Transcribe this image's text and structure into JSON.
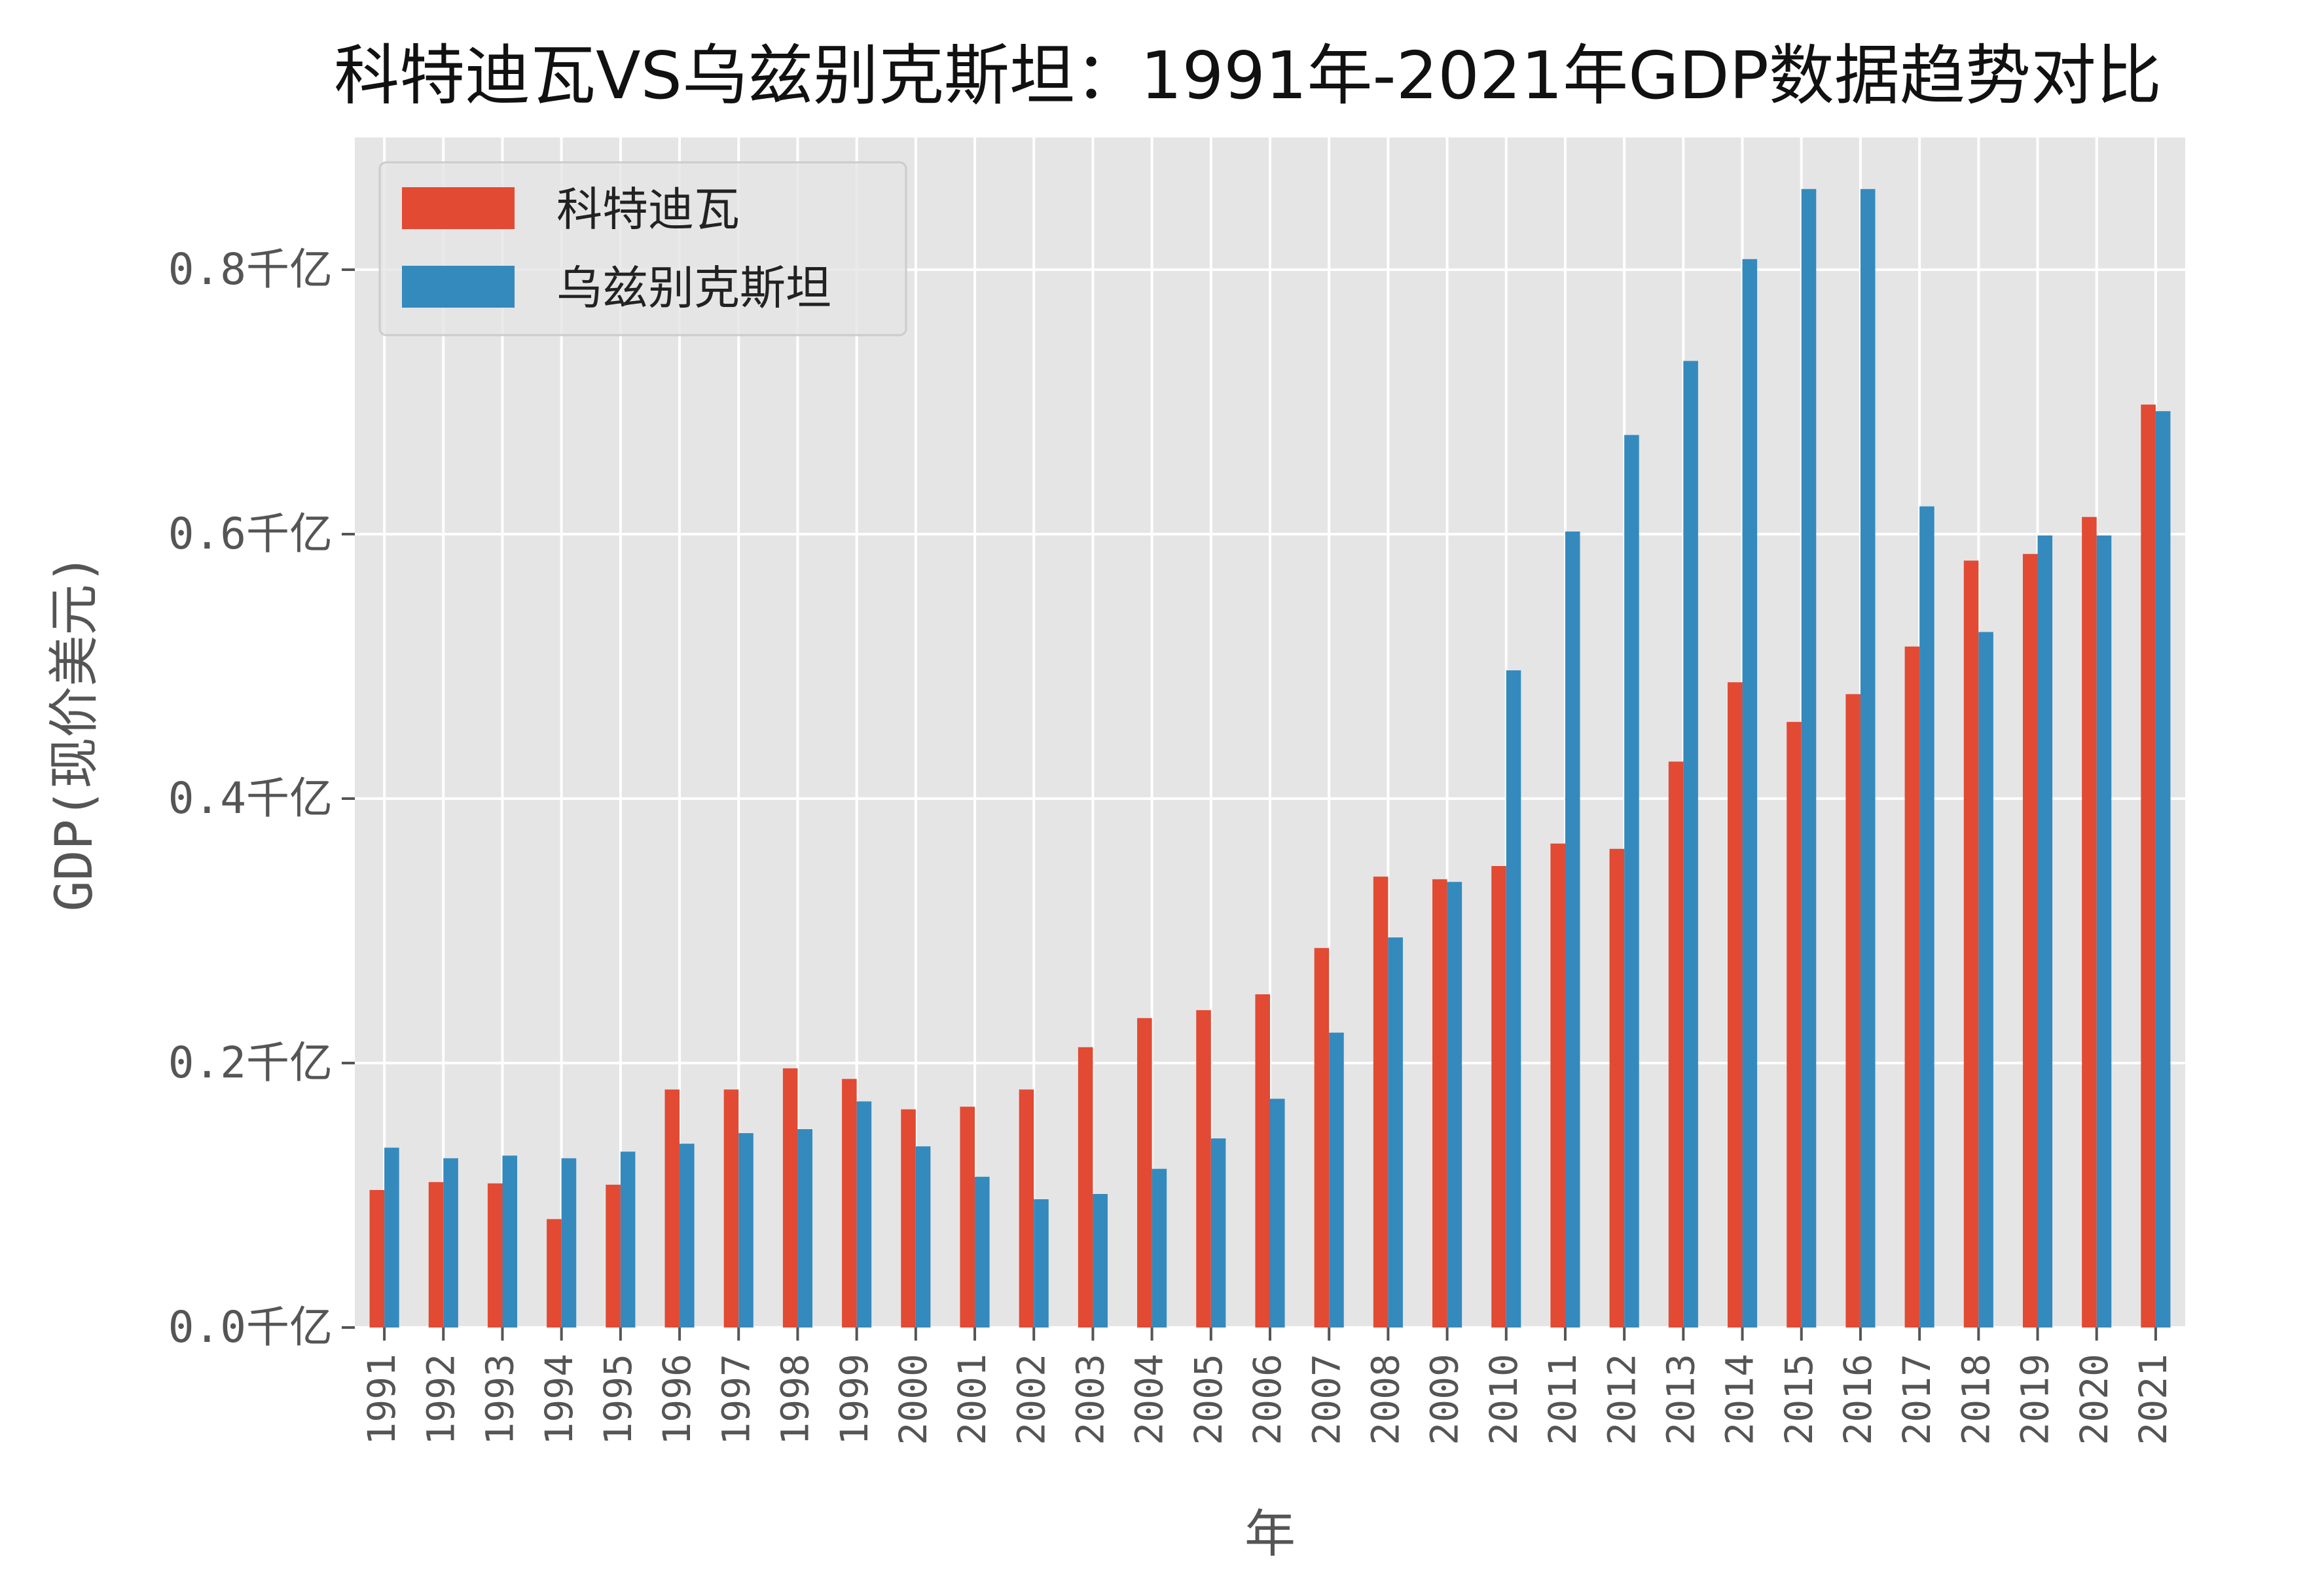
{
  "chart_data": {
    "type": "bar",
    "title": "科特迪瓦VS乌兹别克斯坦：1991年-2021年GDP数据趋势对比",
    "xlabel": "年",
    "ylabel": "GDP(现价美元)",
    "categories": [
      "1991",
      "1992",
      "1993",
      "1994",
      "1995",
      "1996",
      "1997",
      "1998",
      "1999",
      "2000",
      "2001",
      "2002",
      "2003",
      "2004",
      "2005",
      "2006",
      "2007",
      "2008",
      "2009",
      "2010",
      "2011",
      "2012",
      "2013",
      "2014",
      "2015",
      "2016",
      "2017",
      "2018",
      "2019",
      "2020",
      "2021"
    ],
    "series": [
      {
        "name": "科特迪瓦",
        "color": "#e24a33",
        "values": [
          0.104,
          0.11,
          0.109,
          0.082,
          0.108,
          0.18,
          0.18,
          0.196,
          0.188,
          0.165,
          0.167,
          0.18,
          0.212,
          0.234,
          0.24,
          0.252,
          0.287,
          0.341,
          0.339,
          0.349,
          0.366,
          0.362,
          0.428,
          0.488,
          0.458,
          0.479,
          0.515,
          0.58,
          0.585,
          0.613,
          0.698
        ]
      },
      {
        "name": "乌兹别克斯坦",
        "color": "#348abd",
        "values": [
          0.136,
          0.128,
          0.13,
          0.128,
          0.133,
          0.139,
          0.147,
          0.15,
          0.171,
          0.137,
          0.114,
          0.097,
          0.101,
          0.12,
          0.143,
          0.173,
          0.223,
          0.295,
          0.337,
          0.497,
          0.602,
          0.675,
          0.731,
          0.808,
          0.861,
          0.861,
          0.621,
          0.526,
          0.599,
          0.599,
          0.693
        ]
      }
    ],
    "ylim": [
      0,
      0.9
    ],
    "yticks": [
      0.0,
      0.2,
      0.4,
      0.6,
      0.8
    ],
    "ytick_labels": [
      "0.0千亿",
      "0.2千亿",
      "0.4千亿",
      "0.6千亿",
      "0.8千亿"
    ],
    "grid": true,
    "legend_position": "top-left",
    "background": "#e5e5e5"
  }
}
